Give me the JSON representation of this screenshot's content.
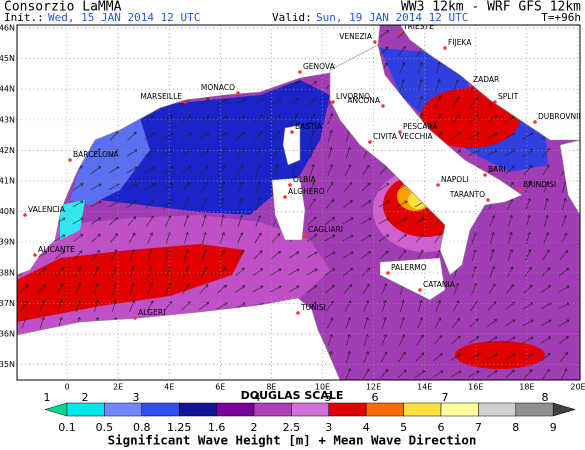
{
  "header": {
    "title": "Consorzio LaMMA",
    "model": "WW3 12km - WRF GFS 12km",
    "init_label": "Init.:",
    "init": "Wed, 15 JAN 2014 12 UTC",
    "valid_label": "Valid:",
    "valid": "Sun, 19 JAN 2014 12 UTC",
    "lead": "T=+96h"
  },
  "map": {
    "lat_labels": [
      "46N",
      "45N",
      "44N",
      "43N",
      "42N",
      "41N",
      "40N",
      "39N",
      "38N",
      "37N",
      "36N",
      "35N"
    ],
    "lon_labels": [
      "0",
      "2E",
      "4E",
      "6E",
      "8E",
      "10E",
      "12E",
      "14E",
      "16E",
      "18E",
      "20E"
    ],
    "cities": [
      "TRIESTE",
      "VENEZIA",
      "FIJEKA",
      "MONACO",
      "GENOVA",
      "ZADAR",
      "MARSEILLE",
      "LIVORNO",
      "ANCONA",
      "SPLIT",
      "BASTIA",
      "DUBROVNIK",
      "PESCARA",
      "BARCELONA",
      "CIVITA VECCHIA",
      "NAPOLI",
      "BARI",
      "OLBIA",
      "BRINDISI",
      "ALGHERO",
      "VALENCIA",
      "TARANTO",
      "CAGLIARI",
      "ALICANTE",
      "PALERMO",
      "CATANIA",
      "TUNISI",
      "ALGERI"
    ]
  },
  "legend": {
    "scale_title": "DOUGLAS SCALE",
    "douglas": [
      "1",
      "2",
      "3",
      "4",
      "5",
      "6",
      "7",
      "8"
    ],
    "levels": [
      "0.1",
      "0.5",
      "0.8",
      "1.25",
      "1.6",
      "2",
      "2.5",
      "3",
      "4",
      "5",
      "6",
      "7",
      "8",
      "9"
    ],
    "caption": "Significant Wave Height [m] + Mean Wave Direction"
  }
}
